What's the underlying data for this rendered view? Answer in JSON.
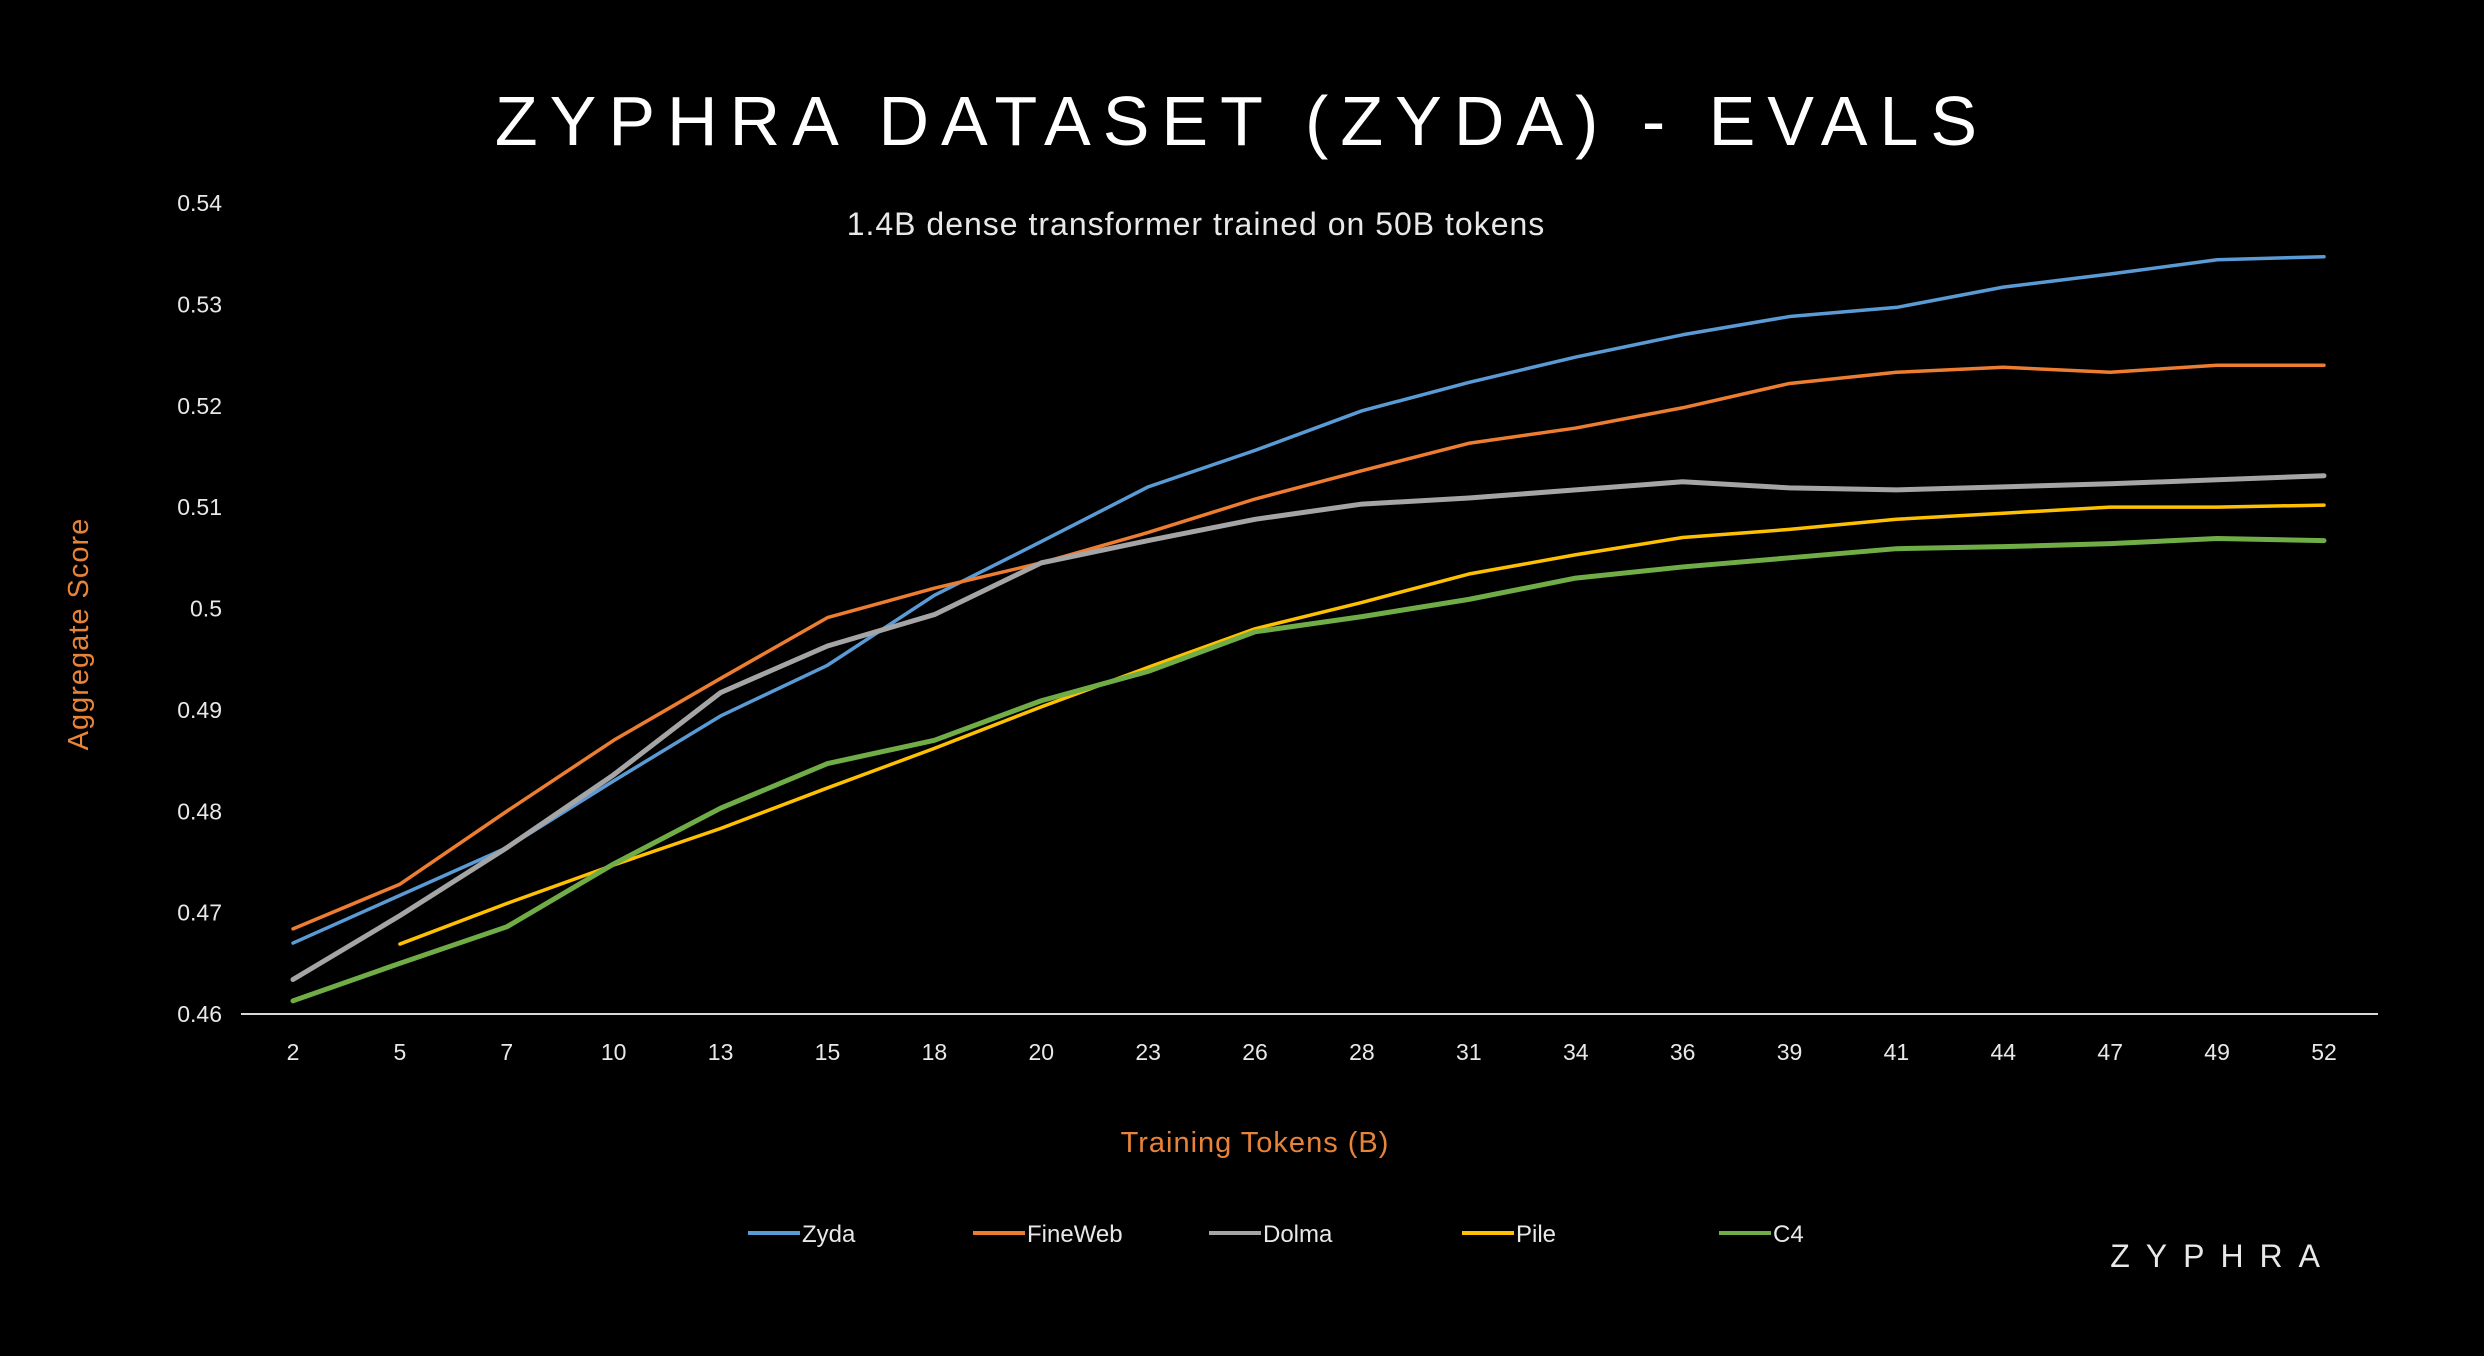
{
  "header": {
    "title": "ZYPHRA DATASET (ZYDA) - EVALS",
    "logo": "ZYPHRA"
  },
  "chart_data": {
    "type": "line",
    "title": "ZYPHRA DATASET (ZYDA) - EVALS",
    "subtitle": "1.4B dense transformer trained on 50B tokens",
    "xlabel": "Training Tokens (B)",
    "ylabel": "Aggregate Score",
    "ylim": [
      0.46,
      0.54
    ],
    "yticks": [
      "0.46",
      "0.47",
      "0.48",
      "0.49",
      "0.5",
      "0.51",
      "0.52",
      "0.53",
      "0.54"
    ],
    "categories": [
      "2",
      "5",
      "7",
      "10",
      "13",
      "15",
      "18",
      "20",
      "23",
      "26",
      "28",
      "31",
      "34",
      "36",
      "39",
      "41",
      "44",
      "47",
      "49",
      "52"
    ],
    "grid": false,
    "legend_position": "bottom",
    "series": [
      {
        "name": "Zyda",
        "color": "#5B9BD5",
        "values": [
          0.467,
          0.4717,
          0.4764,
          0.483,
          0.4894,
          0.4944,
          0.5013,
          0.5066,
          0.512,
          0.5156,
          0.5195,
          0.5223,
          0.5248,
          0.527,
          0.5288,
          0.5297,
          0.5317,
          0.533,
          0.5344,
          0.5347
        ]
      },
      {
        "name": "FineWeb",
        "color": "#ED7D31",
        "values": [
          0.4684,
          0.4728,
          0.48,
          0.487,
          0.4931,
          0.4991,
          0.502,
          0.5045,
          0.5075,
          0.5108,
          0.5136,
          0.5163,
          0.5178,
          0.5198,
          0.5222,
          0.5233,
          0.5238,
          0.5233,
          0.524,
          0.524
        ]
      },
      {
        "name": "Dolma",
        "color": "#A5A5A5",
        "values": [
          0.4634,
          0.4697,
          0.4764,
          0.4836,
          0.4917,
          0.4963,
          0.4994,
          0.5045,
          0.5067,
          0.5088,
          0.5103,
          0.5109,
          0.5117,
          0.5125,
          0.5119,
          0.5117,
          0.512,
          0.5123,
          0.5127,
          0.5131
        ]
      },
      {
        "name": "Pile",
        "color": "#FFC000",
        "values": [
          null,
          0.4669,
          0.4709,
          0.4747,
          0.4783,
          0.4823,
          0.4862,
          0.4903,
          0.4942,
          0.498,
          0.5006,
          0.5034,
          0.5053,
          0.507,
          0.5078,
          0.5088,
          0.5094,
          0.51,
          0.51,
          0.5102
        ]
      },
      {
        "name": "C4",
        "color": "#70AD47",
        "values": [
          0.4613,
          0.465,
          0.4686,
          0.4748,
          0.4803,
          0.4847,
          0.487,
          0.4909,
          0.4938,
          0.4977,
          0.4992,
          0.5009,
          0.503,
          0.5041,
          0.505,
          0.5059,
          0.5061,
          0.5064,
          0.5069,
          0.5067
        ]
      }
    ]
  }
}
